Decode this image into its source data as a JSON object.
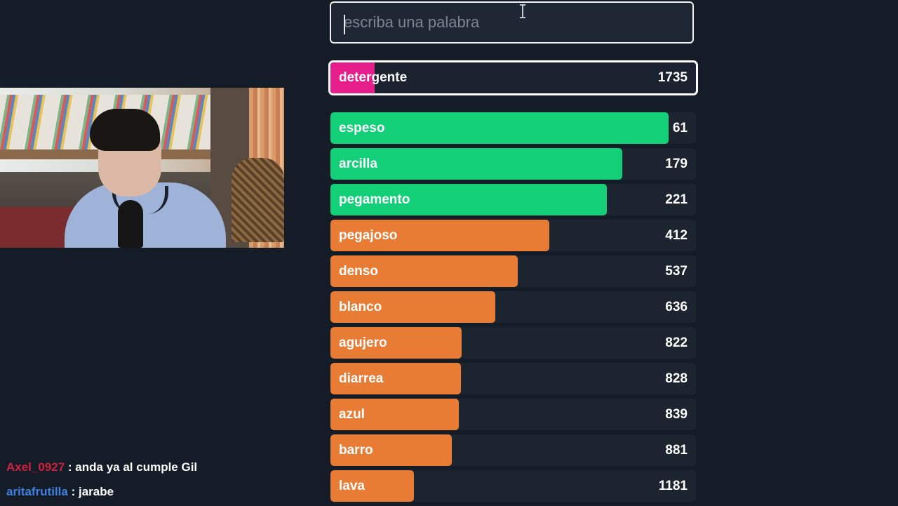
{
  "search": {
    "placeholder": "escriba una palabra",
    "value": ""
  },
  "current_guess": {
    "word": "detergente",
    "rank": "1735",
    "fill_fraction": 0.12,
    "color": "#e61e8c"
  },
  "guesses": [
    {
      "word": "espeso",
      "rank": "61",
      "fill_fraction": 0.925,
      "color": "#13cf78"
    },
    {
      "word": "arcilla",
      "rank": "179",
      "fill_fraction": 0.798,
      "color": "#13cf78"
    },
    {
      "word": "pegamento",
      "rank": "221",
      "fill_fraction": 0.757,
      "color": "#13cf78"
    },
    {
      "word": "pegajoso",
      "rank": "412",
      "fill_fraction": 0.599,
      "color": "#e97c35"
    },
    {
      "word": "denso",
      "rank": "537",
      "fill_fraction": 0.512,
      "color": "#e97c35"
    },
    {
      "word": "blanco",
      "rank": "636",
      "fill_fraction": 0.452,
      "color": "#e97c35"
    },
    {
      "word": "agujero",
      "rank": "822",
      "fill_fraction": 0.359,
      "color": "#e97c35"
    },
    {
      "word": "diarrea",
      "rank": "828",
      "fill_fraction": 0.357,
      "color": "#e97c35"
    },
    {
      "word": "azul",
      "rank": "839",
      "fill_fraction": 0.351,
      "color": "#e97c35"
    },
    {
      "word": "barro",
      "rank": "881",
      "fill_fraction": 0.332,
      "color": "#e97c35"
    },
    {
      "word": "lava",
      "rank": "1181",
      "fill_fraction": 0.228,
      "color": "#e97c35"
    }
  ],
  "chat": [
    {
      "user": "Axel_0927",
      "user_color": "#d0213f",
      "message": ": anda ya al cumple Gil"
    },
    {
      "user": "aritafrutilla",
      "user_color": "#3f7fe0",
      "message": ": jarabe"
    }
  ]
}
